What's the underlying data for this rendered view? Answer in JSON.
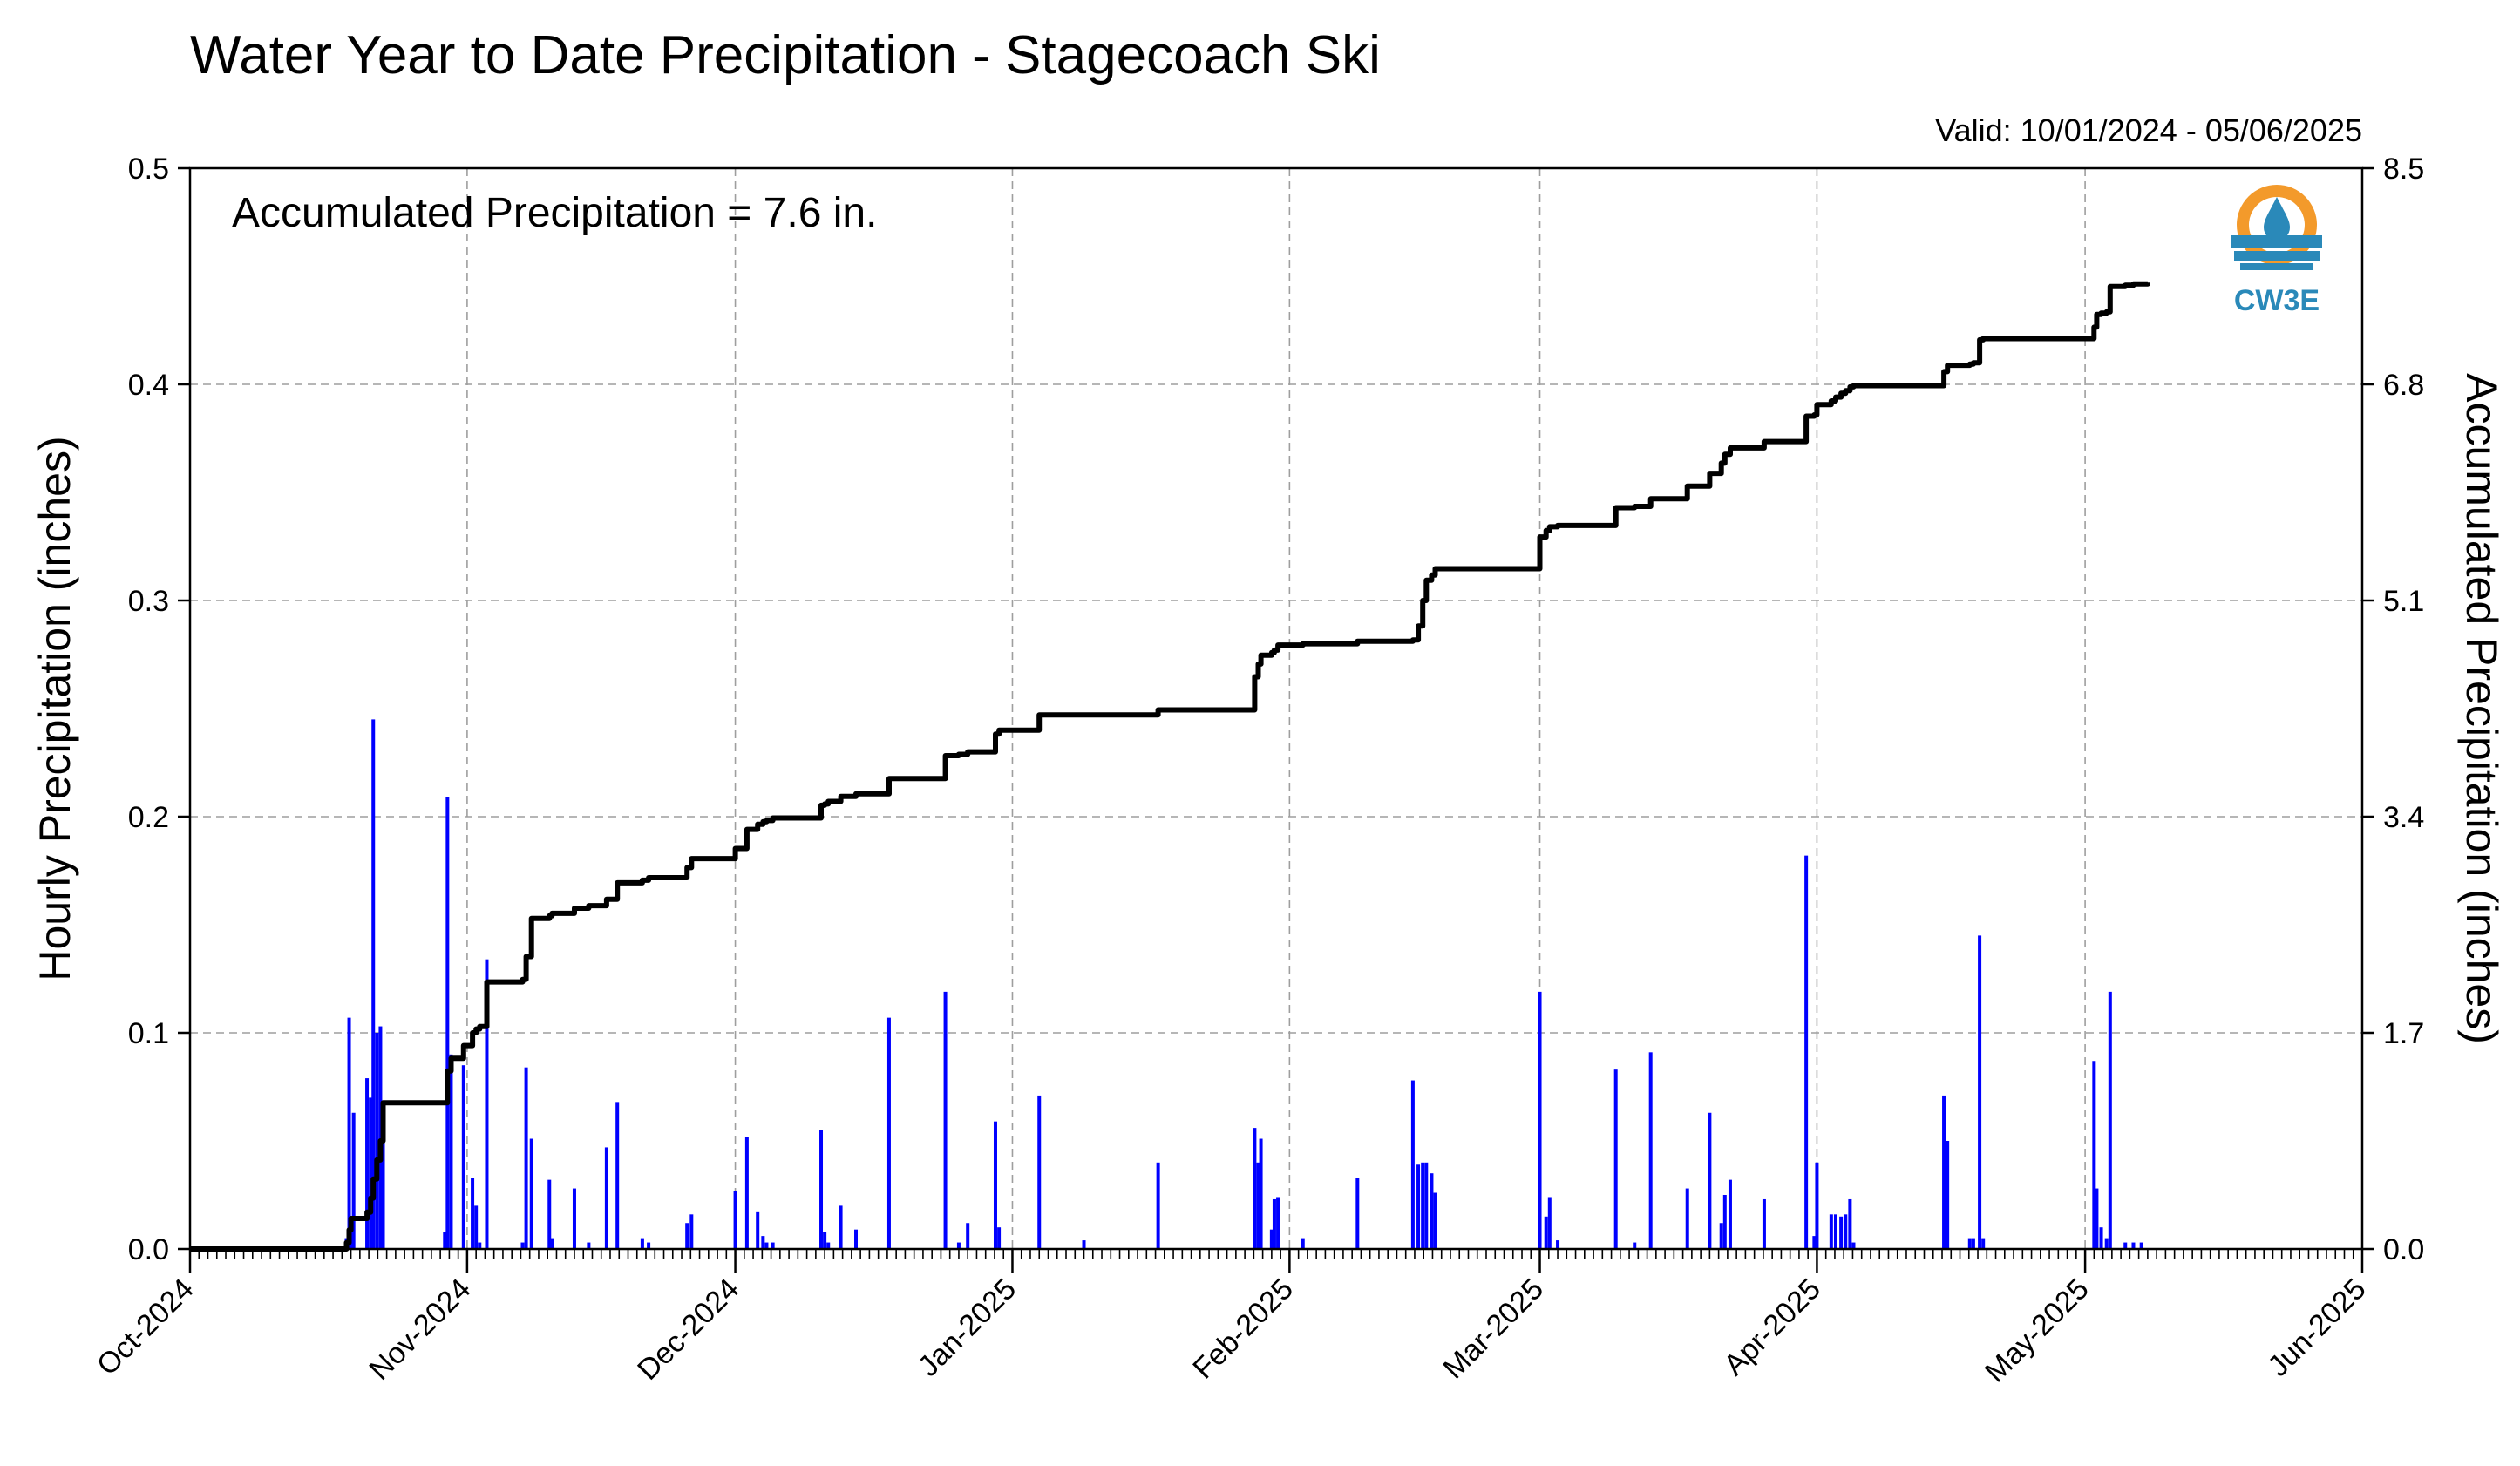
{
  "chart_data": {
    "type": "bar",
    "title": "Water Year to Date Precipitation - Stagecoach Ski",
    "subtitle": "Valid: 10/01/2024 - 05/06/2025",
    "annotation": "Accumulated Precipitation = 7.6 in.",
    "logo_text": "CW3E",
    "ylabel_left": "Hourly Precipitation (inches)",
    "ylabel_right": "Accumulated Precipitation (inches)",
    "ylim_left": [
      0,
      0.5
    ],
    "ylim_right": [
      0,
      8.5
    ],
    "yticks_left": [
      "0.0",
      "0.1",
      "0.2",
      "0.3",
      "0.4",
      "0.5"
    ],
    "yticks_right": [
      "0.0",
      "1.7",
      "3.4",
      "5.1",
      "6.8",
      "8.5"
    ],
    "x_range_days": [
      0,
      243
    ],
    "x_ticks": [
      {
        "day": 0,
        "label": "Oct-2024"
      },
      {
        "day": 31,
        "label": "Nov-2024"
      },
      {
        "day": 61,
        "label": "Dec-2024"
      },
      {
        "day": 92,
        "label": "Jan-2025"
      },
      {
        "day": 123,
        "label": "Feb-2025"
      },
      {
        "day": 151,
        "label": "Mar-2025"
      },
      {
        "day": 182,
        "label": "Apr-2025"
      },
      {
        "day": 212,
        "label": "May-2025"
      },
      {
        "day": 243,
        "label": "Jun-2025"
      }
    ],
    "grid": true,
    "colors": {
      "bars": "#0000ff",
      "accumulated": "#000000",
      "left_axis_label": "#0000ff",
      "logo_orange": "#f39a2b",
      "logo_blue": "#2a89b9"
    },
    "series": [
      {
        "name": "Hourly Precipitation",
        "type": "bar",
        "color": "#0000ff",
        "x": [
          17.5,
          17.8,
          18.0,
          18.3,
          19.8,
          20.2,
          20.5,
          20.9,
          21.3,
          21.6,
          28.5,
          28.8,
          29.2,
          30.6,
          31.6,
          32.0,
          32.4,
          33.2,
          37.2,
          37.6,
          38.2,
          40.2,
          40.5,
          43.0,
          44.6,
          46.6,
          47.8,
          50.6,
          51.3,
          55.6,
          56.1,
          61.0,
          62.3,
          63.5,
          64.1,
          64.5,
          65.2,
          70.6,
          71.0,
          71.4,
          72.8,
          74.5,
          78.2,
          84.5,
          86.0,
          87.0,
          90.1,
          90.5,
          95.0,
          100.0,
          108.3,
          119.1,
          119.5,
          119.8,
          121.0,
          121.3,
          121.7,
          124.5,
          130.6,
          136.8,
          137.4,
          137.9,
          138.3,
          138.9,
          139.3,
          151.0,
          151.7,
          152.1,
          153.0,
          159.5,
          161.6,
          163.4,
          167.5,
          170.0,
          171.3,
          171.7,
          172.3,
          176.1,
          180.8,
          181.7,
          182.0,
          183.6,
          184.1,
          184.7,
          185.2,
          185.7,
          186.1,
          196.2,
          196.6,
          199.1,
          199.5,
          200.2,
          200.6,
          213.0,
          213.3,
          213.8,
          214.4,
          214.8,
          216.5,
          217.4,
          218.3
        ],
        "values": [
          0.005,
          0.107,
          0.012,
          0.063,
          0.079,
          0.07,
          0.245,
          0.1,
          0.103,
          0.06,
          0.008,
          0.209,
          0.09,
          0.085,
          0.033,
          0.02,
          0.003,
          0.134,
          0.003,
          0.084,
          0.051,
          0.032,
          0.005,
          0.028,
          0.003,
          0.047,
          0.068,
          0.005,
          0.003,
          0.012,
          0.016,
          0.027,
          0.052,
          0.017,
          0.006,
          0.003,
          0.003,
          0.055,
          0.008,
          0.003,
          0.02,
          0.009,
          0.107,
          0.119,
          0.003,
          0.012,
          0.059,
          0.01,
          0.071,
          0.004,
          0.04,
          0.056,
          0.04,
          0.051,
          0.009,
          0.023,
          0.024,
          0.005,
          0.033,
          0.078,
          0.039,
          0.04,
          0.04,
          0.035,
          0.026,
          0.119,
          0.015,
          0.024,
          0.004,
          0.083,
          0.003,
          0.091,
          0.028,
          0.063,
          0.012,
          0.025,
          0.032,
          0.023,
          0.182,
          0.006,
          0.04,
          0.016,
          0.016,
          0.015,
          0.016,
          0.023,
          0.003,
          0.071,
          0.05,
          0.005,
          0.005,
          0.145,
          0.005,
          0.087,
          0.028,
          0.01,
          0.005,
          0.119,
          0.003,
          0.003,
          0.003
        ]
      },
      {
        "name": "Accumulated Precipitation",
        "type": "line",
        "color": "#000000",
        "x": [
          0,
          17.5,
          17.8,
          18.0,
          19.8,
          20.2,
          20.5,
          20.9,
          21.3,
          21.6,
          28.5,
          28.8,
          29.2,
          30.6,
          31.6,
          32.0,
          32.4,
          33.2,
          37.2,
          37.6,
          38.2,
          40.2,
          40.5,
          43.0,
          44.6,
          46.6,
          47.8,
          50.6,
          51.3,
          55.6,
          56.1,
          61.0,
          62.3,
          63.5,
          64.1,
          64.5,
          65.2,
          70.6,
          71.0,
          71.4,
          72.8,
          74.5,
          78.2,
          84.5,
          86.0,
          87.0,
          90.1,
          90.5,
          95.0,
          100.0,
          108.3,
          119.1,
          119.5,
          119.8,
          121.0,
          121.3,
          121.7,
          124.5,
          130.6,
          136.8,
          137.4,
          137.9,
          138.3,
          138.9,
          139.3,
          151.0,
          151.7,
          152.1,
          153.0,
          159.5,
          161.6,
          163.4,
          167.5,
          170.0,
          171.3,
          171.7,
          172.3,
          176.1,
          180.8,
          181.7,
          182.0,
          183.6,
          184.1,
          184.7,
          185.2,
          185.7,
          186.1,
          196.2,
          196.6,
          199.1,
          199.5,
          200.2,
          200.6,
          213.0,
          213.3,
          213.8,
          214.4,
          214.8,
          216.5,
          217.4,
          218.3,
          219.0
        ],
        "values": [
          0,
          0.05,
          0.15,
          0.24,
          0.29,
          0.4,
          0.55,
          0.7,
          0.85,
          1.15,
          1.15,
          1.4,
          1.5,
          1.6,
          1.7,
          1.73,
          1.75,
          2.1,
          2.12,
          2.3,
          2.6,
          2.62,
          2.64,
          2.68,
          2.7,
          2.75,
          2.88,
          2.9,
          2.92,
          3.0,
          3.07,
          3.15,
          3.3,
          3.34,
          3.36,
          3.37,
          3.39,
          3.49,
          3.5,
          3.52,
          3.56,
          3.58,
          3.7,
          3.88,
          3.89,
          3.91,
          4.05,
          4.08,
          4.2,
          4.2,
          4.24,
          4.5,
          4.6,
          4.67,
          4.69,
          4.71,
          4.75,
          4.76,
          4.78,
          4.79,
          4.9,
          5.1,
          5.26,
          5.3,
          5.35,
          5.6,
          5.65,
          5.68,
          5.69,
          5.83,
          5.84,
          5.9,
          6.0,
          6.1,
          6.18,
          6.25,
          6.3,
          6.35,
          6.55,
          6.56,
          6.64,
          6.67,
          6.7,
          6.73,
          6.75,
          6.78,
          6.79,
          6.9,
          6.95,
          6.96,
          6.97,
          7.15,
          7.16,
          7.25,
          7.35,
          7.36,
          7.37,
          7.57,
          7.58,
          7.59,
          7.59,
          7.6
        ]
      }
    ]
  }
}
